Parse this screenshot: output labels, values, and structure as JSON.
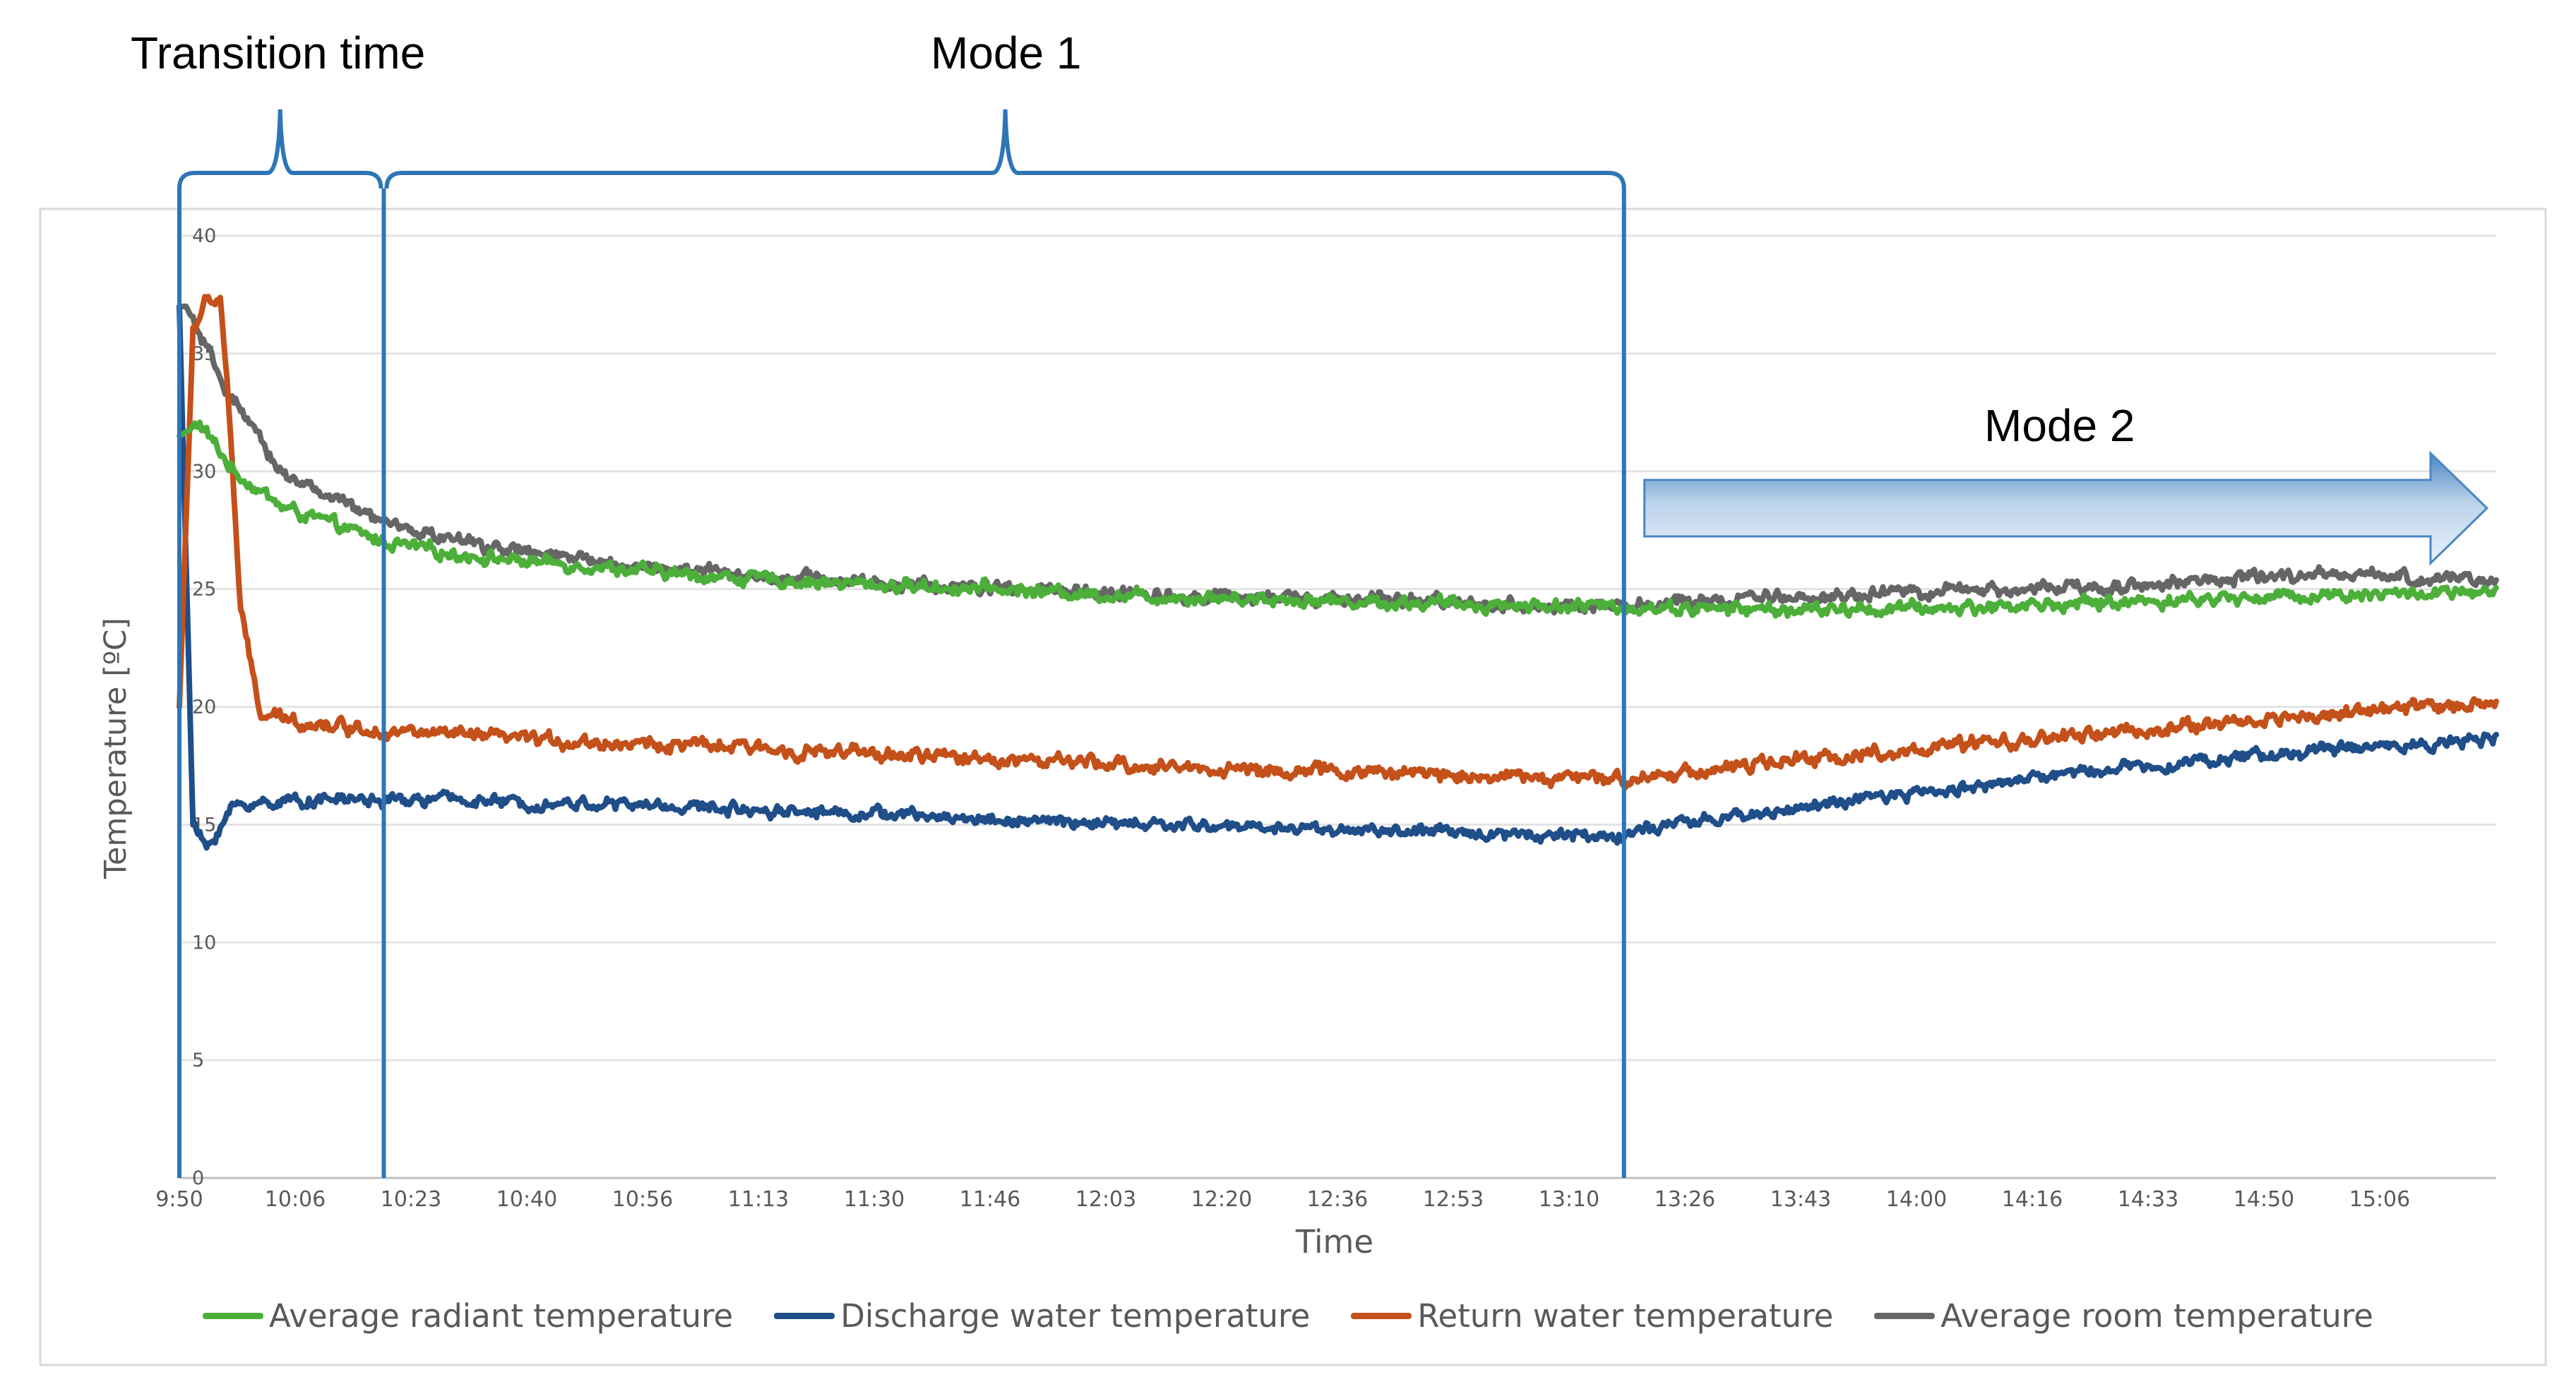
{
  "chart_data": {
    "type": "line",
    "title": "",
    "xlabel": "Time",
    "ylabel": "Temperature [ºC]",
    "ylim": [
      0,
      40
    ],
    "yticks": [
      0,
      5,
      10,
      15,
      20,
      25,
      30,
      35,
      40
    ],
    "ytick_labels": [
      "0",
      "5",
      "10",
      "15",
      "20",
      "25",
      "30",
      "35",
      "40"
    ],
    "xlim_minutes": [
      0,
      340
    ],
    "x_unit": "minutes after 9:50",
    "xtick_labels": [
      "9:50",
      "10:06",
      "10:23",
      "10:40",
      "10:56",
      "11:13",
      "11:30",
      "11:46",
      "12:03",
      "12:20",
      "12:36",
      "12:53",
      "13:10",
      "13:26",
      "13:43",
      "14:00",
      "14:16",
      "14:33",
      "14:50",
      "15:06"
    ],
    "grid": true,
    "legend_position": "bottom",
    "series": [
      {
        "name": "Average radiant temperature",
        "color": "#4CAF3A",
        "x": [
          0,
          3,
          8,
          15,
          25,
          30,
          40,
          50,
          60,
          70,
          80,
          100,
          120,
          140,
          160,
          180,
          200,
          220,
          240,
          260,
          280,
          290,
          300,
          320,
          340
        ],
        "y": [
          31.5,
          32,
          30,
          28.5,
          27.5,
          27,
          26.5,
          26.2,
          26,
          25.7,
          25.5,
          25.2,
          25,
          24.7,
          24.6,
          24.4,
          24.3,
          24.2,
          24.1,
          24.2,
          24.4,
          24.5,
          24.6,
          24.8,
          24.8
        ]
      },
      {
        "name": "Discharge water temperature",
        "color": "#1F4E89",
        "x": [
          0,
          2,
          4,
          8,
          15,
          25,
          30,
          40,
          50,
          60,
          80,
          100,
          120,
          140,
          160,
          180,
          200,
          210,
          220,
          240,
          260,
          280,
          300,
          320,
          340
        ],
        "y": [
          37,
          15,
          14,
          15.8,
          16,
          16.1,
          16,
          16.1,
          15.9,
          15.9,
          15.7,
          15.5,
          15.2,
          15,
          14.9,
          14.7,
          14.6,
          14.5,
          15,
          15.8,
          16.5,
          17.3,
          17.8,
          18.3,
          18.6
        ]
      },
      {
        "name": "Return water temperature",
        "color": "#C4501A",
        "x": [
          0,
          2,
          4,
          6,
          7,
          9,
          12,
          20,
          30,
          40,
          60,
          80,
          100,
          120,
          140,
          160,
          180,
          200,
          210,
          220,
          240,
          260,
          280,
          300,
          320,
          340
        ],
        "y": [
          20,
          36,
          37.2,
          37.3,
          34,
          24,
          19.6,
          19.3,
          19,
          18.8,
          18.5,
          18.3,
          18,
          17.8,
          17.5,
          17.3,
          17.2,
          17,
          16.9,
          17.2,
          17.8,
          18.3,
          18.8,
          19.3,
          19.8,
          20.2
        ]
      },
      {
        "name": "Average room temperature",
        "color": "#666666",
        "x": [
          0,
          1,
          5,
          10,
          15,
          20,
          25,
          30,
          40,
          50,
          60,
          70,
          80,
          100,
          120,
          140,
          160,
          180,
          200,
          210,
          220,
          240,
          260,
          280,
          300,
          320,
          340
        ],
        "y": [
          37,
          37,
          34.5,
          32,
          30,
          29.2,
          28.5,
          27.8,
          27.1,
          26.6,
          26.2,
          25.9,
          25.7,
          25.3,
          25,
          24.8,
          24.6,
          24.5,
          24.3,
          24.2,
          24.4,
          24.7,
          24.9,
          25.1,
          25.4,
          25.6,
          25.3
        ]
      }
    ],
    "annotations": {
      "transition_label": "Transition time",
      "mode1_label": "Mode 1",
      "mode2_label": "Mode 2",
      "transition_range_minutes": [
        0,
        30
      ],
      "mode1_range_minutes": [
        30,
        212
      ],
      "mode2_start_minutes": 215,
      "bracket_color": "#2E75B6"
    }
  }
}
